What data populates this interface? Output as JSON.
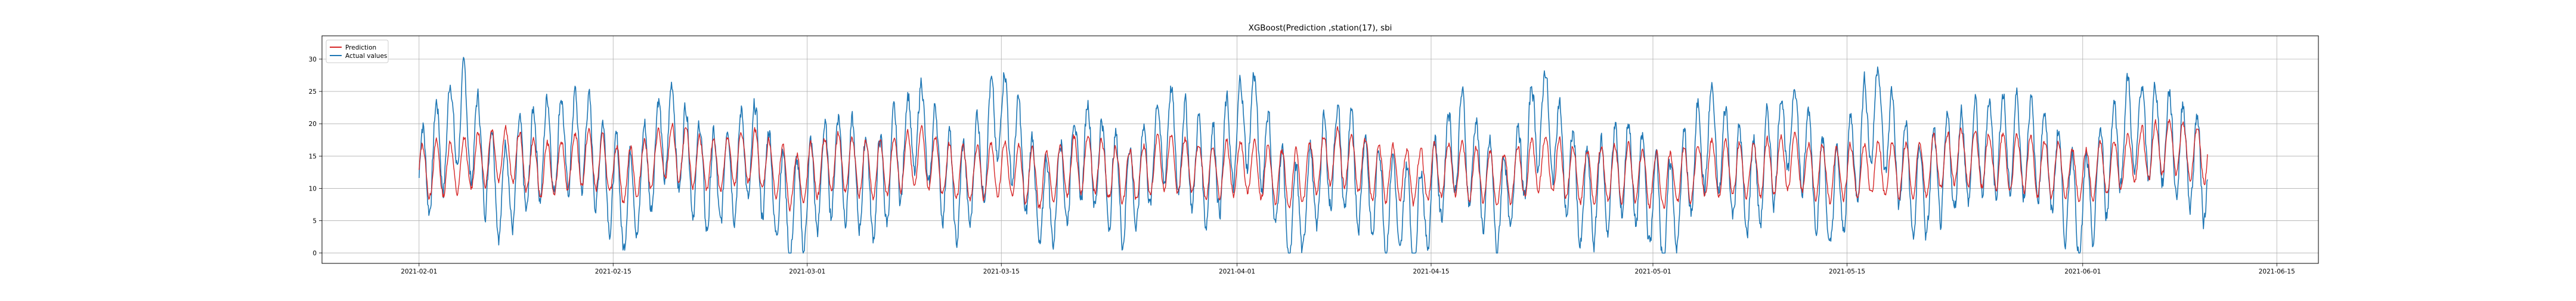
{
  "chart_data": {
    "type": "line",
    "title": "XGBoost(Prediction ,station(17), sbi",
    "xlabel": "",
    "ylabel": "",
    "x_ticks": [
      "2021-02-01",
      "2021-02-15",
      "2021-03-01",
      "2021-03-15",
      "2021-04-01",
      "2021-04-15",
      "2021-05-01",
      "2021-05-15",
      "2021-06-01",
      "2021-06-15"
    ],
    "y_ticks": [
      0,
      5,
      10,
      15,
      20,
      25,
      30
    ],
    "xlim": [
      "2021-01-25",
      "2021-06-18"
    ],
    "ylim": [
      -1.6,
      33.6
    ],
    "grid": true,
    "legend_position": "upper-left",
    "series": [
      {
        "name": "Prediction",
        "color": "#d62728",
        "dates": [
          "2021-02-01",
          "2021-02-04",
          "2021-02-07",
          "2021-02-10",
          "2021-02-13",
          "2021-02-16",
          "2021-02-19",
          "2021-02-22",
          "2021-02-25",
          "2021-02-28",
          "2021-03-03",
          "2021-03-06",
          "2021-03-09",
          "2021-03-12",
          "2021-03-15",
          "2021-03-18",
          "2021-03-21",
          "2021-03-24",
          "2021-03-27",
          "2021-03-30",
          "2021-04-02",
          "2021-04-05",
          "2021-04-08",
          "2021-04-11",
          "2021-04-14",
          "2021-04-17",
          "2021-04-20",
          "2021-04-23",
          "2021-04-26",
          "2021-04-29",
          "2021-05-02",
          "2021-05-05",
          "2021-05-08",
          "2021-05-11",
          "2021-05-14",
          "2021-05-17",
          "2021-05-20",
          "2021-05-23",
          "2021-05-26",
          "2021-05-29",
          "2021-06-01",
          "2021-06-04",
          "2021-06-07",
          "2021-06-10"
        ],
        "values": [
          12,
          13,
          16,
          12,
          15,
          11,
          16,
          13,
          15,
          10,
          14,
          12,
          15,
          11,
          13,
          10,
          14,
          11,
          14,
          12,
          13,
          10,
          15,
          12,
          11,
          13,
          10,
          14,
          11,
          12,
          10,
          13,
          12,
          14,
          11,
          13,
          12,
          15,
          14,
          13,
          11,
          14,
          17,
          15
        ]
      },
      {
        "name": "Actual values",
        "color": "#1f77b4",
        "dates": [
          "2021-02-01",
          "2021-02-04",
          "2021-02-07",
          "2021-02-10",
          "2021-02-13",
          "2021-02-16",
          "2021-02-19",
          "2021-02-22",
          "2021-02-25",
          "2021-02-28",
          "2021-03-03",
          "2021-03-06",
          "2021-03-09",
          "2021-03-12",
          "2021-03-15",
          "2021-03-18",
          "2021-03-21",
          "2021-03-24",
          "2021-03-27",
          "2021-03-30",
          "2021-04-02",
          "2021-04-05",
          "2021-04-08",
          "2021-04-11",
          "2021-04-14",
          "2021-04-17",
          "2021-04-20",
          "2021-04-23",
          "2021-04-26",
          "2021-04-29",
          "2021-05-02",
          "2021-05-05",
          "2021-05-08",
          "2021-05-11",
          "2021-05-14",
          "2021-05-17",
          "2021-05-20",
          "2021-05-23",
          "2021-05-26",
          "2021-05-29",
          "2021-06-01",
          "2021-06-04",
          "2021-06-07",
          "2021-06-10"
        ],
        "values": [
          12,
          26,
          9,
          19,
          20,
          6,
          23,
          10,
          18,
          4,
          16,
          9,
          24,
          7,
          27,
          5,
          19,
          8,
          22,
          12,
          26,
          2,
          18,
          9,
          3,
          21,
          5,
          27,
          6,
          15,
          3,
          22,
          9,
          24,
          5,
          28,
          8,
          16,
          20,
          18,
          4,
          23,
          21,
          13
        ]
      }
    ]
  }
}
